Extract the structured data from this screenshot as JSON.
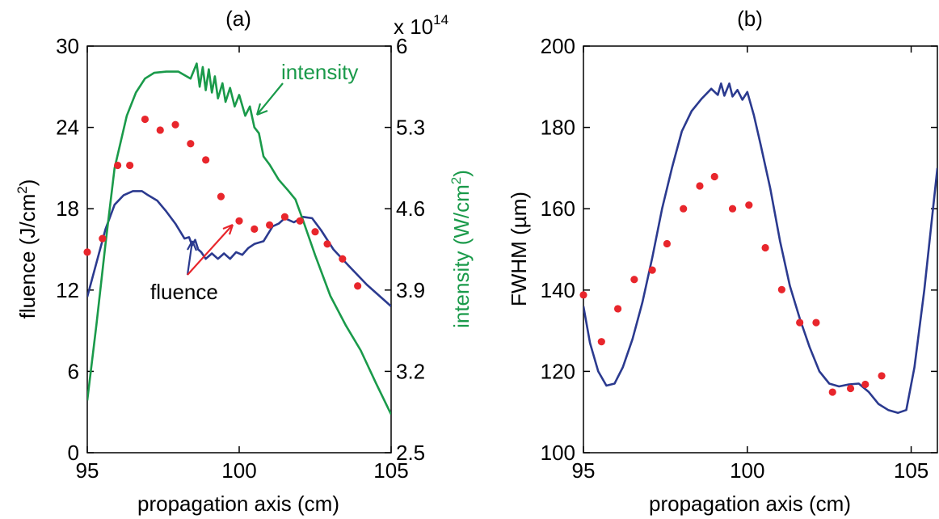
{
  "chart_data": [
    {
      "type": "line",
      "title": "(a)",
      "xlabel": "propagation axis (cm)",
      "ylabel": "fluence (J/cm²)",
      "ylabel_right": "intensity (W/cm²)",
      "right_axis_multiplier": "x 10",
      "right_axis_exponent": "14",
      "xlim": [
        95,
        105
      ],
      "ylim": [
        0,
        30
      ],
      "ylim_right": [
        2.5,
        6
      ],
      "xticks": [
        "95",
        "100",
        "105"
      ],
      "yticks": [
        "0",
        "6",
        "12",
        "18",
        "24",
        "30"
      ],
      "yticks_right": [
        "2.5",
        "3.2",
        "3.9",
        "4.6",
        "5.3",
        "6"
      ],
      "annotations": [
        "intensity",
        "fluence"
      ],
      "colors": {
        "fluence": "#2b3a8f",
        "intensity": "#1a9a4a",
        "points": "#e8262c"
      },
      "series": [
        {
          "name": "fluence",
          "axis": "left",
          "x": [
            95.0,
            95.3,
            95.6,
            95.9,
            96.2,
            96.5,
            96.8,
            97.0,
            97.3,
            97.6,
            97.9,
            98.2,
            98.35,
            98.45,
            98.55,
            98.65,
            98.75,
            98.9,
            99.1,
            99.3,
            99.5,
            99.7,
            99.9,
            100.1,
            100.3,
            100.5,
            100.8,
            101.1,
            101.3,
            101.5,
            101.8,
            102.1,
            102.4,
            102.7,
            103.1,
            103.6,
            104.2,
            105.0
          ],
          "values": [
            11.5,
            14.0,
            16.5,
            18.3,
            19.0,
            19.3,
            19.3,
            19.0,
            18.6,
            17.8,
            16.9,
            15.8,
            15.9,
            15.3,
            15.7,
            15.0,
            14.8,
            14.3,
            14.7,
            14.3,
            14.7,
            14.3,
            14.8,
            14.6,
            15.1,
            15.4,
            15.6,
            16.7,
            16.9,
            17.3,
            17.0,
            17.4,
            17.3,
            16.4,
            15.0,
            13.8,
            12.4,
            10.8
          ]
        },
        {
          "name": "intensity",
          "axis": "right",
          "x": [
            95.0,
            95.3,
            95.6,
            95.9,
            96.3,
            96.6,
            96.9,
            97.2,
            97.6,
            98.0,
            98.4,
            98.6,
            98.7,
            98.8,
            98.9,
            99.0,
            99.1,
            99.2,
            99.3,
            99.45,
            99.55,
            99.7,
            99.85,
            100.0,
            100.2,
            100.35,
            100.5,
            100.65,
            100.8,
            101.0,
            101.3,
            101.6,
            101.85,
            102.1,
            102.5,
            103.0,
            103.5,
            104.0,
            104.5,
            105.0
          ],
          "values": [
            2.95,
            3.6,
            4.3,
            4.95,
            5.4,
            5.6,
            5.72,
            5.77,
            5.78,
            5.78,
            5.72,
            5.85,
            5.65,
            5.82,
            5.62,
            5.8,
            5.6,
            5.74,
            5.55,
            5.68,
            5.52,
            5.64,
            5.48,
            5.58,
            5.4,
            5.48,
            5.3,
            5.25,
            5.05,
            4.98,
            4.85,
            4.76,
            4.68,
            4.5,
            4.2,
            3.85,
            3.6,
            3.38,
            3.1,
            2.83
          ]
        },
        {
          "name": "",
          "type": "scatter",
          "axis": "left",
          "x": [
            95.0,
            95.5,
            96.0,
            96.4,
            96.9,
            97.4,
            97.9,
            98.4,
            98.9,
            99.4,
            100.0,
            100.5,
            101.0,
            101.5,
            102.0,
            102.5,
            102.9,
            103.4,
            103.9
          ],
          "values": [
            14.8,
            15.8,
            21.2,
            21.2,
            24.6,
            23.8,
            24.2,
            22.8,
            21.6,
            18.9,
            17.1,
            16.5,
            16.8,
            17.4,
            17.1,
            16.3,
            15.4,
            14.3,
            12.3
          ]
        }
      ]
    },
    {
      "type": "line",
      "title": "(b)",
      "xlabel": "propagation axis (cm)",
      "ylabel": "FWHM (µm)",
      "xlim": [
        95,
        105.8
      ],
      "ylim": [
        100,
        200
      ],
      "xticks": [
        "95",
        "100",
        "105"
      ],
      "yticks": [
        "100",
        "120",
        "140",
        "160",
        "180",
        "200"
      ],
      "colors": {
        "line": "#2b3a8f",
        "points": "#e8262c"
      },
      "series": [
        {
          "name": "",
          "x": [
            95.0,
            95.2,
            95.45,
            95.7,
            95.95,
            96.2,
            96.5,
            96.8,
            97.1,
            97.4,
            97.7,
            98.0,
            98.3,
            98.6,
            98.9,
            99.1,
            99.2,
            99.3,
            99.45,
            99.55,
            99.7,
            99.85,
            100.0,
            100.2,
            100.4,
            100.7,
            101.0,
            101.3,
            101.6,
            101.9,
            102.2,
            102.5,
            102.8,
            103.1,
            103.4,
            103.7,
            104.0,
            104.3,
            104.6,
            104.85,
            105.1,
            105.4,
            105.8
          ],
          "values": [
            136,
            127,
            120,
            116.5,
            117,
            121,
            128,
            137,
            148,
            160,
            170,
            179,
            184,
            187,
            189.5,
            188,
            190.8,
            187.8,
            190.8,
            187.6,
            189.2,
            186.8,
            188.7,
            183,
            176,
            165,
            152,
            141,
            133,
            126,
            120,
            117,
            116.3,
            116.8,
            117,
            115,
            112,
            110.5,
            109.8,
            110.5,
            121,
            140,
            170
          ]
        },
        {
          "name": "",
          "type": "scatter",
          "x": [
            95.0,
            95.55,
            96.05,
            96.55,
            97.1,
            97.55,
            98.05,
            98.55,
            99.0,
            99.55,
            100.05,
            100.55,
            101.05,
            101.6,
            102.1,
            102.6,
            103.15,
            103.6,
            104.1
          ],
          "values": [
            138.8,
            127.3,
            135.4,
            142.6,
            144.9,
            151.4,
            160.0,
            165.6,
            167.9,
            160.0,
            160.9,
            150.4,
            140.1,
            132.0,
            132.0,
            114.9,
            115.8,
            116.8,
            118.9
          ]
        }
      ]
    }
  ]
}
